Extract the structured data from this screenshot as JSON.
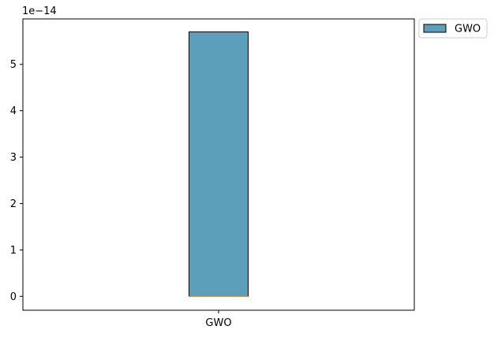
{
  "chart_data": {
    "type": "box",
    "categories": [
      "GWO"
    ],
    "series": [
      {
        "name": "GWO",
        "color": "#5b9fba",
        "median_color": "#d98e43",
        "box": {
          "min": 0.0,
          "q1": 0.0,
          "median": 0.0,
          "q3": 5.7e-14,
          "max": 5.7e-14
        }
      }
    ],
    "ylim": [
      -3e-15,
      5.98e-14
    ],
    "yticks": [
      0,
      1,
      2,
      3,
      4,
      5
    ],
    "ytick_labels": [
      "0",
      "1",
      "2",
      "3",
      "4",
      "5"
    ],
    "y_offset_label": "1e−14",
    "xtick_labels": [
      "GWO"
    ],
    "legend": {
      "placement": "outside-top-right",
      "entries": [
        "GWO"
      ]
    },
    "grid": false
  }
}
